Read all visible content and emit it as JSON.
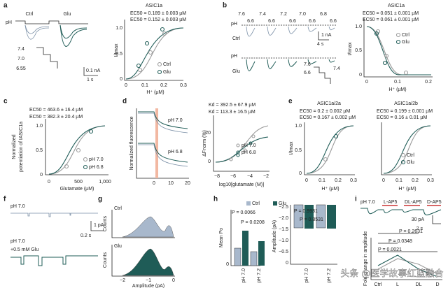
{
  "watermark": "头条 @医学故事红蓝融合",
  "panels": {
    "a": {
      "label": "a",
      "ph": "pH",
      "conditions": [
        "Ctrl",
        "Glu"
      ],
      "steps": [
        "7.4",
        "7.0",
        "6.55"
      ],
      "scale": [
        "0.1 nA",
        "1 s"
      ],
      "chart": {
        "title": "ASIC1a",
        "fits": [
          "EC50 = 0.189 ± 0.003 µM",
          "EC50 = 0.152 ± 0.003 µM"
        ],
        "ylabel": "I/Imax",
        "yticks": [
          "0",
          "0.5",
          "1.0"
        ],
        "xticks": [
          "0",
          "0.1",
          "0.2",
          "0.3"
        ],
        "xlabel": "H⁺ (µM)",
        "legend": [
          "Ctrl",
          "Glu"
        ]
      }
    },
    "b": {
      "label": "b",
      "ph_top": [
        "7.6",
        "7.4",
        "7.2",
        "7.0",
        "6.8"
      ],
      "ph_test": [
        "6.6",
        "6.6",
        "6.6",
        "6.6",
        "6.6"
      ],
      "ph": [
        "pH",
        "pH"
      ],
      "conditions": [
        "Ctrl",
        "Glu"
      ],
      "scale": [
        "1 nA",
        "4 s"
      ],
      "steps": [
        "7.6",
        "6.6",
        "7.4"
      ],
      "chart": {
        "title": "ASIC1a",
        "fits": [
          "EC50 = 0.051 ± 0.001 µM",
          "EC50 = 0.061 ± 0.001 µM"
        ],
        "ylabel": "I/Imax",
        "yticks": [
          "0",
          "0.5",
          "1.0"
        ],
        "xticks": [
          "0",
          "0.1",
          "0.2"
        ],
        "xlabel": "H⁺ (µM)",
        "legend": [
          "Ctrl",
          "Glu"
        ]
      }
    },
    "c": {
      "label": "c",
      "fits": [
        "EC50 = 463.6 ± 16.4 µM",
        "EC50 = 382.3 ± 20.4 µM"
      ],
      "ylabel": [
        "Normalized",
        "potentiation of IASIC1a"
      ],
      "yticks": [
        "0",
        "0.5",
        "1.0"
      ],
      "xticks": [
        "0",
        "500",
        "1,000"
      ],
      "xlabel": "Glutamate (µM)",
      "legend": [
        "pH 7.0",
        "pH 6.8"
      ]
    },
    "d": {
      "label": "d",
      "ylabel": "Normalized fluorescence",
      "traces": [
        "pH 7.0",
        "pH 6.8"
      ],
      "xticks": [
        "0",
        "10",
        "20"
      ],
      "chart": {
        "fits": [
          "Kd = 392.5 ± 67.9 µM",
          "Kd = 113.3 ± 16.5 µM"
        ],
        "ylabel": "ΔFnorm (%)",
        "yticks": [
          "20",
          "0"
        ],
        "xticks": [
          "−8",
          "−6",
          "−4",
          "−2"
        ],
        "xlabel": "log10[glutamate (M)]",
        "legend": [
          "pH 7.0",
          "pH 6.8"
        ]
      }
    },
    "e": {
      "label": "e",
      "titles": [
        "ASIC1a/2a",
        "ASIC1a/2b"
      ],
      "fits": [
        "EC50 = 0.2 ± 0.002 µM",
        "EC50 = 0.167 ± 0.002 µM",
        "EC50 = 0.199 ± 0.001 µM",
        "EC50 = 0.16 ± 0.01 µM"
      ],
      "ylabel": "I/Imax",
      "yticks": [
        "0",
        "0.5",
        "1.0"
      ],
      "xticks": [
        "0",
        "0.1",
        "0.2",
        "0.3"
      ],
      "xlabel": "H⁺ (µM)",
      "legend": [
        "Ctrl",
        "Glu"
      ]
    },
    "f": {
      "label": "f",
      "traces": [
        "pH 7.0",
        "pH 7.0",
        "+0.5 mM Glu"
      ],
      "scale": [
        "1 pA",
        "0.2 s"
      ]
    },
    "g": {
      "label": "g",
      "conditions": [
        "Ctrl",
        "Glu"
      ],
      "ylabel": "Counts",
      "xticks": [
        "−2",
        "−1",
        "0"
      ],
      "xlabel": "Amplitude (pA)"
    },
    "h": {
      "label": "h",
      "legend": [
        "Ctrl",
        "Glu"
      ],
      "p_left": [
        "P = 0.0066",
        "P = 0.0208"
      ],
      "ylabel_left": "Mean Po",
      "yticks_left": [
        "0"
      ],
      "categories": [
        "pH 7.0",
        "pH 7.2"
      ],
      "p_right": [
        "P = 0.9931",
        "P = 0.8531"
      ],
      "ylabel_right": "Amplitude (pA)",
      "yticks_right": [
        "−2.5",
        "−2.0",
        "−1.5",
        "−1.0",
        "−0.5",
        "0"
      ]
    },
    "i": {
      "label": "i",
      "drugs": [
        "pH 7.0",
        "L-AP5",
        "DL-AP5",
        "D-AP5"
      ],
      "scale": [
        "30 pA",
        "2 s"
      ],
      "p": [
        "P = 0.2631",
        "P = 0.0348",
        "P = 0.0021"
      ],
      "ylabel": "Fold change in amplitude",
      "categories": [
        "Ctrl",
        "L",
        "DL",
        "D"
      ]
    }
  }
}
